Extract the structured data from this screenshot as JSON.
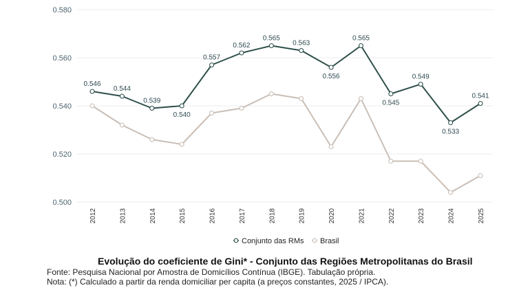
{
  "chart_data": {
    "type": "line",
    "x": [
      "2012",
      "2013",
      "2014",
      "2015",
      "2016",
      "2017",
      "2018",
      "2019",
      "2020",
      "2021",
      "2022",
      "2023",
      "2024",
      "2025"
    ],
    "ylim": [
      0.5,
      0.58
    ],
    "yticks": [
      "0.580",
      "0.560",
      "0.540",
      "0.520",
      "0.500"
    ],
    "grid": true,
    "legend_position": "bottom",
    "series": [
      {
        "name": "Conjunto das RMs",
        "color": "#2e4f4a",
        "values": [
          0.546,
          0.544,
          0.539,
          0.54,
          0.557,
          0.562,
          0.565,
          0.563,
          0.556,
          0.565,
          0.545,
          0.549,
          0.533,
          0.541
        ],
        "labels": [
          "0.546",
          "0.544",
          "0.539",
          "0.540",
          "0.557",
          "0.562",
          "0.565",
          "0.563",
          "0.556",
          "0.565",
          "0.545",
          "0.549",
          "0.533",
          "0.541"
        ]
      },
      {
        "name": "Brasil",
        "color": "#c9beb6",
        "values": [
          0.54,
          0.532,
          0.526,
          0.524,
          0.537,
          0.539,
          0.545,
          0.543,
          0.523,
          0.543,
          0.517,
          0.517,
          0.504,
          0.511
        ]
      }
    ]
  },
  "caption": {
    "title": "Evolução do coeficiente de Gini* - Conjunto das Regiões Metropolitanas do Brasil",
    "source": "Fonte: Pesquisa Nacional por Amostra de Domicílios Contínua (IBGE). Tabulação própria.",
    "note": "Nota: (*) Calculado a partir da renda domiciliar per capita (a preços constantes, 2025 / IPCA)."
  }
}
